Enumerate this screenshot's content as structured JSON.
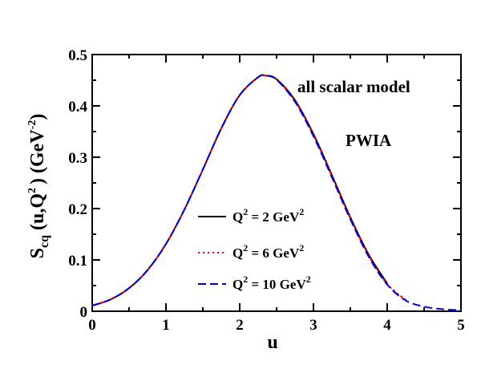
{
  "chart_data": {
    "type": "line",
    "xlabel": "u",
    "ylabel": {
      "main": "S",
      "sub": "cq",
      "open": "(u,Q",
      "sup": "2",
      "close": ") (GeV",
      "unit_sup": "-2",
      "end": ")"
    },
    "xlim": [
      0,
      5
    ],
    "ylim": [
      0,
      0.5
    ],
    "x_ticks": [
      0,
      1,
      2,
      3,
      4,
      5
    ],
    "x_tick_labels": [
      "0",
      "1",
      "2",
      "3",
      "4",
      "5"
    ],
    "y_ticks": [
      0,
      0.1,
      0.2,
      0.3,
      0.4,
      0.5
    ],
    "y_tick_labels": [
      "0",
      "0.1",
      "0.2",
      "0.3",
      "0.4",
      "0.5"
    ],
    "grid": false,
    "legend_position": "center-left",
    "annotations": [
      "all scalar model",
      "PWIA"
    ],
    "x": [
      0.0,
      0.25,
      0.5,
      0.75,
      1.0,
      1.25,
      1.5,
      1.75,
      2.0,
      2.25,
      2.35,
      2.5,
      2.75,
      3.0,
      3.25,
      3.5,
      3.75,
      4.0,
      4.25,
      4.5,
      4.75,
      5.0
    ],
    "series": [
      {
        "name_parts": [
          "Q",
          "2",
          " = 2 GeV",
          "2"
        ],
        "color": "#000000",
        "dash": "solid",
        "values": [
          0.011,
          0.023,
          0.045,
          0.08,
          0.131,
          0.198,
          0.276,
          0.356,
          0.421,
          0.456,
          0.459,
          0.452,
          0.411,
          0.345,
          0.265,
          0.183,
          0.11,
          0.054,
          null,
          null,
          null,
          null
        ]
      },
      {
        "name_parts": [
          "Q",
          "2",
          " = 6 GeV",
          "2"
        ],
        "color": "#ff0000",
        "dash": "dotted",
        "values": [
          0.011,
          0.023,
          0.045,
          0.08,
          0.131,
          0.198,
          0.276,
          0.356,
          0.421,
          0.456,
          0.459,
          0.451,
          0.409,
          0.343,
          0.263,
          0.181,
          0.108,
          0.053,
          0.022,
          null,
          null,
          null
        ]
      },
      {
        "name_parts": [
          "Q",
          "2",
          " = 10 GeV",
          "2"
        ],
        "color": "#0000dd",
        "dash": "dashed",
        "values": [
          0.011,
          0.023,
          0.045,
          0.08,
          0.131,
          0.198,
          0.276,
          0.356,
          0.421,
          0.456,
          0.459,
          0.451,
          0.408,
          0.341,
          0.261,
          0.179,
          0.106,
          0.052,
          0.021,
          0.009,
          0.004,
          0.002
        ]
      }
    ]
  }
}
